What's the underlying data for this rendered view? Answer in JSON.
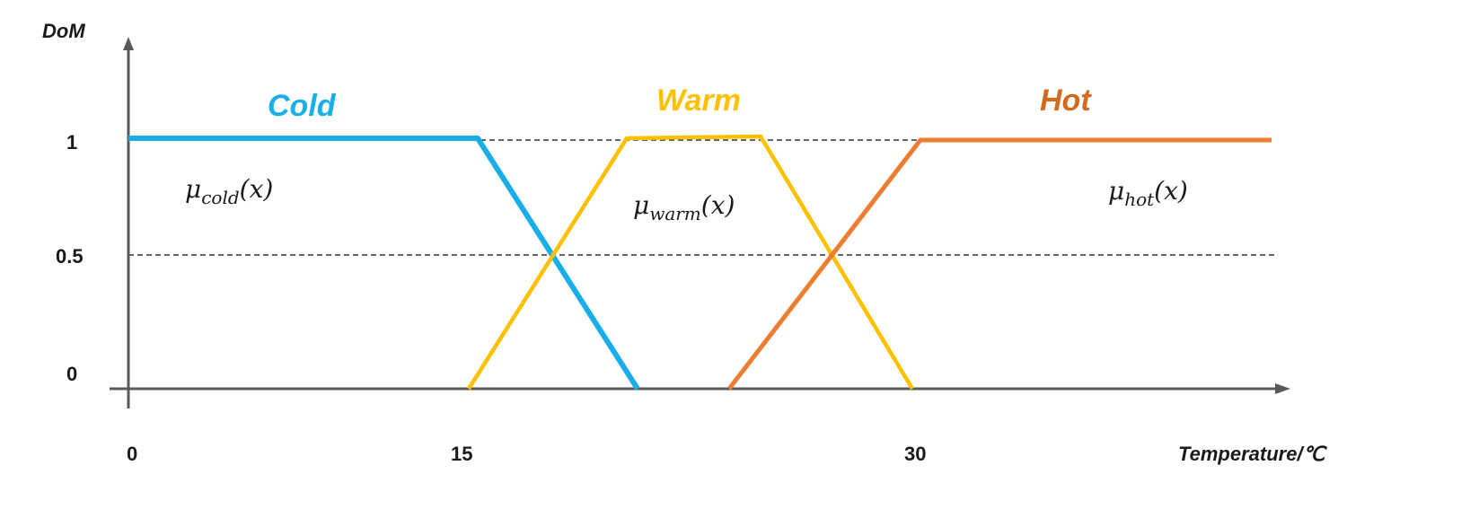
{
  "axes": {
    "y_title": "DoM",
    "x_title": "Temperature/℃",
    "y_ticks": [
      "1",
      "0.5",
      "0"
    ],
    "x_ticks": [
      "0",
      "15",
      "30"
    ]
  },
  "sets": [
    {
      "key": "cold",
      "name": "Cold",
      "color": "#1AAEE8",
      "mu_base": "μ",
      "mu_sub": "cold",
      "mu_arg": "(x)"
    },
    {
      "key": "warm",
      "name": "Warm",
      "color": "#FFC000",
      "mu_base": "μ",
      "mu_sub": "warm",
      "mu_arg": "(x)"
    },
    {
      "key": "hot",
      "name": "Hot",
      "color": "#ED7D31",
      "mu_base": "μ",
      "mu_sub": "hot",
      "mu_arg": "(x)"
    }
  ],
  "colors": {
    "axis": "#595959",
    "grid": "#333333",
    "cold": "#1AAEE8",
    "warm": "#FFC000",
    "hot": "#ED7D31",
    "hot_label": "#D26A1F"
  }
}
